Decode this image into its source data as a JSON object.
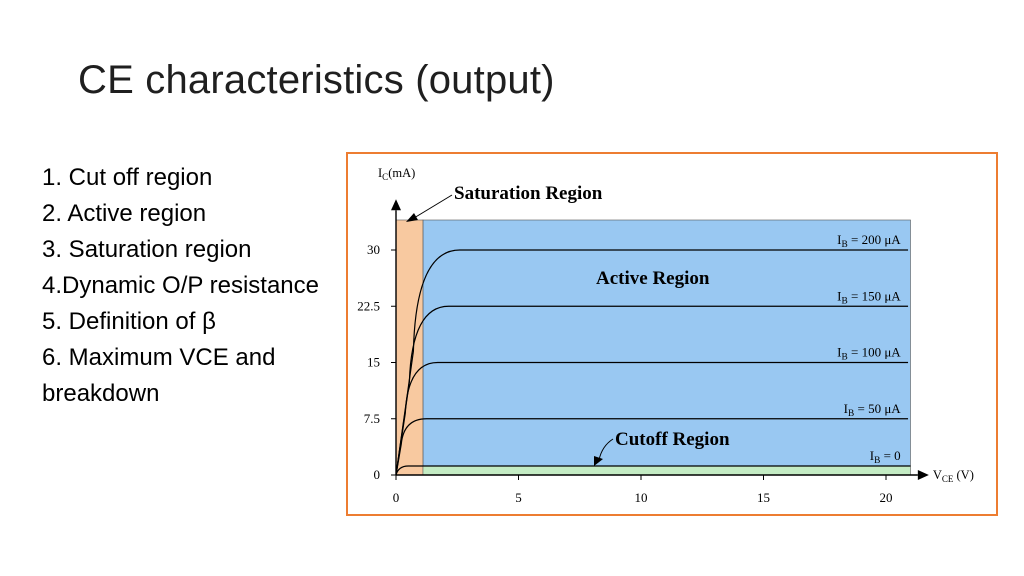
{
  "slide": {
    "title": "CE characteristics (output)",
    "topics": [
      "1. Cut off region",
      "2. Active region",
      "3. Saturation region",
      "4.Dynamic O/P resistance",
      "5. Definition of β",
      "6. Maximum VCE and breakdown"
    ]
  },
  "colors": {
    "frame": "#ed7d31",
    "active_region": "#99c8f2",
    "saturation_region": "#f8c9a0",
    "cutoff_region": "#c4ecc4",
    "curve": "#000000"
  },
  "chart_data": {
    "type": "line",
    "x_axis": {
      "main": "V",
      "sub": "CE",
      "unit": "(V)",
      "ticks": [
        "0",
        "5",
        "10",
        "15",
        "20"
      ],
      "range": [
        0,
        21
      ]
    },
    "y_axis": {
      "main": "I",
      "sub": "C",
      "unit": "(mA)",
      "ticks": [
        "0",
        "7.5",
        "15",
        "22.5",
        "30"
      ],
      "range": [
        0,
        34
      ]
    },
    "tick_values": {
      "x": [
        0,
        5,
        10,
        15,
        20
      ],
      "y": [
        0,
        7.5,
        15,
        22.5,
        30
      ]
    },
    "regions": {
      "saturation": {
        "label": "Saturation Region",
        "x_range": [
          0,
          1.1
        ],
        "y_range": [
          0,
          34
        ]
      },
      "active": {
        "label": "Active Region",
        "x_range": [
          1.1,
          21
        ],
        "y_range": [
          1.2,
          34
        ]
      },
      "cutoff": {
        "label": "Cutoff Region",
        "x_range": [
          0,
          21
        ],
        "y_range": [
          0,
          1.2
        ]
      }
    },
    "series": [
      {
        "name": "I_B = 0",
        "label_main": "I",
        "label_sub": "B",
        "label_value": " = 0",
        "ic": 1.2
      },
      {
        "name": "I_B = 50 μA",
        "label_main": "I",
        "label_sub": "B",
        "label_value": " = 50 μA",
        "ic": 7.5
      },
      {
        "name": "I_B = 100 μA",
        "label_main": "I",
        "label_sub": "B",
        "label_value": " = 100 μA",
        "ic": 15
      },
      {
        "name": "I_B = 150 μA",
        "label_main": "I",
        "label_sub": "B",
        "label_value": " = 150 μA",
        "ic": 22.5
      },
      {
        "name": "I_B = 200 μA",
        "label_main": "I",
        "label_sub": "B",
        "label_value": " = 200 μA",
        "ic": 30
      }
    ]
  }
}
